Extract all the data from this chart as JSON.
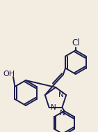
{
  "background_color": "#f2ede0",
  "line_color": "#1a1a4e",
  "line_width": 1.4,
  "font_size": 7.5,
  "figsize": [
    1.41,
    1.89
  ],
  "dpi": 100,
  "xlim": [
    0,
    141
  ],
  "ylim": [
    0,
    189
  ]
}
